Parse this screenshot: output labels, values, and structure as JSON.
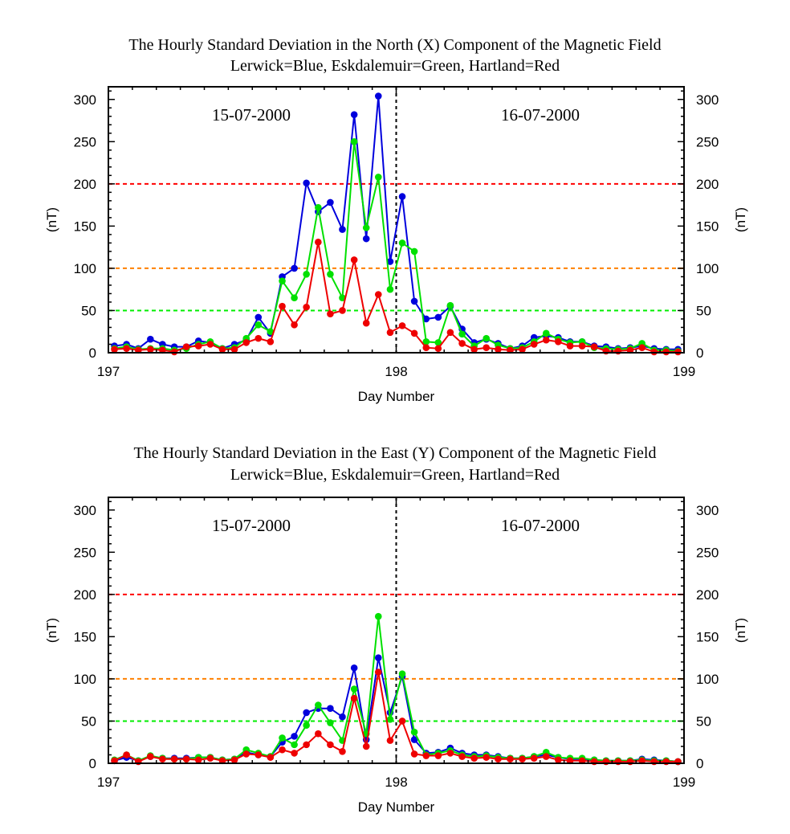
{
  "chart_data": [
    {
      "type": "line",
      "title": "The Hourly Standard Deviation in the North (X) Component of the Magnetic Field",
      "subtitle": "Lerwick=Blue, Eskdalemuir=Green, Hartland=Red",
      "xlabel": "Day Number",
      "ylabel": "(nT)",
      "xlim": [
        197,
        199
      ],
      "ylim": [
        0,
        315
      ],
      "xticks": [
        "197",
        "198",
        "199"
      ],
      "yticks": [
        "0",
        "50",
        "100",
        "150",
        "200",
        "250",
        "300"
      ],
      "date_labels": [
        "15-07-2000",
        "16-07-2000"
      ],
      "day_divider": 198,
      "thresholds": [
        {
          "value": 200,
          "color": "#ff0000"
        },
        {
          "value": 100,
          "color": "#ff8000"
        },
        {
          "value": 50,
          "color": "#00ee00"
        }
      ],
      "x": [
        197.021,
        197.063,
        197.104,
        197.146,
        197.188,
        197.229,
        197.271,
        197.313,
        197.354,
        197.396,
        197.438,
        197.479,
        197.521,
        197.563,
        197.604,
        197.646,
        197.688,
        197.729,
        197.771,
        197.813,
        197.854,
        197.896,
        197.938,
        197.979,
        198.021,
        198.063,
        198.104,
        198.146,
        198.188,
        198.229,
        198.271,
        198.313,
        198.354,
        198.396,
        198.438,
        198.479,
        198.521,
        198.563,
        198.604,
        198.646,
        198.688,
        198.729,
        198.771,
        198.813,
        198.854,
        198.896,
        198.938,
        198.979
      ],
      "series": [
        {
          "name": "Lerwick",
          "color": "#0000dd",
          "values": [
            8,
            10,
            5,
            16,
            10,
            7,
            7,
            14,
            12,
            5,
            10,
            15,
            42,
            23,
            90,
            100,
            201,
            167,
            178,
            146,
            282,
            135,
            304,
            108,
            185,
            61,
            40,
            42,
            55,
            28,
            12,
            16,
            11,
            5,
            8,
            18,
            20,
            18,
            13,
            13,
            8,
            7,
            5,
            6,
            8,
            5,
            4,
            4
          ]
        },
        {
          "name": "Eskdalemuir",
          "color": "#00e000",
          "values": [
            5,
            7,
            4,
            5,
            5,
            3,
            5,
            10,
            13,
            5,
            6,
            17,
            33,
            25,
            85,
            65,
            93,
            172,
            93,
            65,
            250,
            148,
            208,
            75,
            130,
            120,
            13,
            12,
            56,
            22,
            8,
            17,
            9,
            5,
            6,
            13,
            23,
            16,
            12,
            13,
            6,
            5,
            4,
            5,
            11,
            3,
            3,
            2
          ]
        },
        {
          "name": "Hartland",
          "color": "#ee0000",
          "values": [
            4,
            5,
            3,
            4,
            3,
            1,
            7,
            8,
            10,
            4,
            4,
            12,
            17,
            13,
            55,
            33,
            54,
            131,
            46,
            50,
            110,
            35,
            69,
            24,
            32,
            23,
            6,
            5,
            24,
            11,
            4,
            6,
            4,
            3,
            4,
            10,
            15,
            13,
            8,
            8,
            7,
            2,
            2,
            3,
            6,
            1,
            1,
            1
          ]
        }
      ]
    },
    {
      "type": "line",
      "title": "The Hourly Standard Deviation in the East (Y) Component of the Magnetic Field",
      "subtitle": "Lerwick=Blue, Eskdalemuir=Green, Hartland=Red",
      "xlabel": "Day Number",
      "ylabel": "(nT)",
      "xlim": [
        197,
        199
      ],
      "ylim": [
        0,
        315
      ],
      "xticks": [
        "197",
        "198",
        "199"
      ],
      "yticks": [
        "0",
        "50",
        "100",
        "150",
        "200",
        "250",
        "300"
      ],
      "date_labels": [
        "15-07-2000",
        "16-07-2000"
      ],
      "day_divider": 198,
      "thresholds": [
        {
          "value": 200,
          "color": "#ff0000"
        },
        {
          "value": 100,
          "color": "#ff8000"
        },
        {
          "value": 50,
          "color": "#00ee00"
        }
      ],
      "x": [
        197.021,
        197.063,
        197.104,
        197.146,
        197.188,
        197.229,
        197.271,
        197.313,
        197.354,
        197.396,
        197.438,
        197.479,
        197.521,
        197.563,
        197.604,
        197.646,
        197.688,
        197.729,
        197.771,
        197.813,
        197.854,
        197.896,
        197.938,
        197.979,
        198.021,
        198.063,
        198.104,
        198.146,
        198.188,
        198.229,
        198.271,
        198.313,
        198.354,
        198.396,
        198.438,
        198.479,
        198.521,
        198.563,
        198.604,
        198.646,
        198.688,
        198.729,
        198.771,
        198.813,
        198.854,
        198.896,
        198.938,
        198.979
      ],
      "series": [
        {
          "name": "Lerwick",
          "color": "#0000dd",
          "values": [
            3,
            7,
            3,
            8,
            6,
            6,
            6,
            7,
            7,
            4,
            5,
            13,
            10,
            8,
            25,
            32,
            60,
            65,
            65,
            55,
            113,
            28,
            125,
            60,
            103,
            28,
            12,
            13,
            18,
            12,
            10,
            10,
            8,
            6,
            6,
            8,
            10,
            7,
            5,
            5,
            4,
            3,
            3,
            3,
            5,
            4,
            3,
            2
          ]
        },
        {
          "name": "Eskdalemuir",
          "color": "#00e000",
          "values": [
            4,
            10,
            3,
            9,
            6,
            5,
            5,
            7,
            7,
            4,
            5,
            16,
            12,
            8,
            30,
            22,
            45,
            69,
            48,
            27,
            88,
            35,
            174,
            52,
            106,
            37,
            10,
            12,
            15,
            10,
            8,
            9,
            7,
            6,
            6,
            8,
            13,
            7,
            6,
            6,
            4,
            3,
            3,
            3,
            4,
            3,
            3,
            2
          ]
        },
        {
          "name": "Hartland",
          "color": "#ee0000",
          "values": [
            3,
            10,
            2,
            8,
            5,
            5,
            5,
            4,
            6,
            3,
            4,
            11,
            10,
            7,
            16,
            12,
            22,
            35,
            22,
            14,
            77,
            20,
            108,
            27,
            50,
            11,
            9,
            9,
            12,
            8,
            6,
            7,
            5,
            5,
            5,
            6,
            8,
            4,
            3,
            3,
            2,
            2,
            2,
            2,
            3,
            2,
            2,
            2
          ]
        }
      ]
    }
  ]
}
